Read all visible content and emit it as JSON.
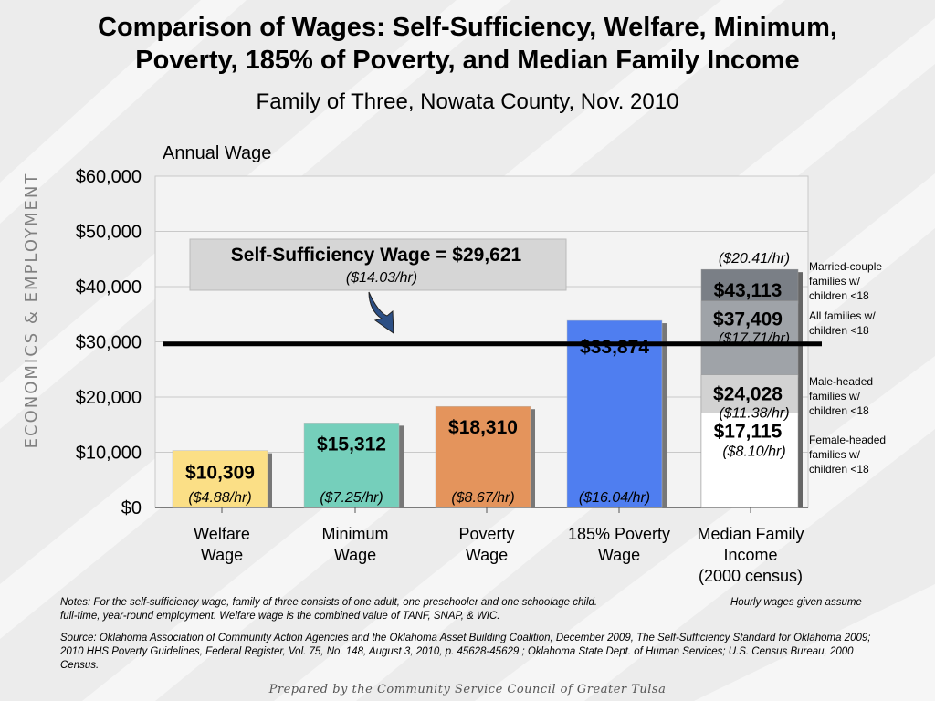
{
  "slide": {
    "title_line1": "Comparison of Wages: Self-Sufficiency, Welfare, Minimum,",
    "title_line2": "Poverty, 185% of Poverty, and Median Family Income",
    "subtitle": "Family of Three, Nowata County, Nov. 2010",
    "side_label": "ECONOMICS & EMPLOYMENT",
    "notes_line1": "Notes:  For the self-sufficiency wage, family of three consists of one adult, one preschooler and one schoolage child.",
    "notes_hourly": "Hourly wages given assume",
    "notes_line2": "full-time, year-round employment.  Welfare wage is the combined value of TANF, SNAP, & WIC.",
    "source": "Source:  Oklahoma Association of Community Action Agencies and the Oklahoma Asset Building Coalition, December 2009, The Self-Sufficiency Standard for Oklahoma 2009; 2010 HHS Poverty Guidelines, Federal Register, Vol. 75, No. 148, August 3, 2010, p. 45628-45629.; Oklahoma State Dept. of Human Services; U.S. Census Bureau, 2000 Census.",
    "footer": "Prepared by the Community Service Council of Greater Tulsa"
  },
  "chart_data": {
    "type": "bar",
    "title": "Comparison of Wages: Self-Sufficiency, Welfare, Minimum, Poverty, 185% of Poverty, and Median Family Income",
    "subtitle": "Family of Three, Nowata County, Nov. 2010",
    "ylabel": "Annual Wage",
    "ylim": [
      0,
      60000
    ],
    "y_ticks": [
      0,
      10000,
      20000,
      30000,
      40000,
      50000,
      60000
    ],
    "y_tick_labels": [
      "$0",
      "$10,000",
      "$20,000",
      "$30,000",
      "$40,000",
      "$50,000",
      "$60,000"
    ],
    "grid": true,
    "categories": [
      [
        "Welfare",
        "Wage"
      ],
      [
        "Minimum",
        "Wage"
      ],
      [
        "Poverty",
        "Wage"
      ],
      [
        "185% Poverty",
        "Wage"
      ],
      [
        "Median Family",
        "Income",
        "(2000 census)"
      ]
    ],
    "bars": [
      {
        "value": 10309,
        "label": "$10,309",
        "hourly": "($4.88/hr)",
        "color": "#fbdf86"
      },
      {
        "value": 15312,
        "label": "$15,312",
        "hourly": "($7.25/hr)",
        "color": "#75cfbb"
      },
      {
        "value": 18310,
        "label": "$18,310",
        "hourly": "($8.67/hr)",
        "color": "#e4945c"
      },
      {
        "value": 33874,
        "label": "$33,874",
        "hourly": "($16.04/hr)",
        "color": "#4f7ef0"
      }
    ],
    "median_stack": [
      {
        "value": 43113,
        "label": "$43,113",
        "hourly": "($20.41/hr)",
        "desc": "Married-couple families w/ children <18",
        "color": "#7a7f86"
      },
      {
        "value": 37409,
        "label": "$37,409",
        "hourly": "($17.71/hr)",
        "desc": "All families w/ children <18",
        "color": "#9fa3a8"
      },
      {
        "value": 24028,
        "label": "$24,028",
        "hourly": "($11.38/hr)",
        "desc": "Male-headed families w/ children <18",
        "color": "#d2d2d2"
      },
      {
        "value": 17115,
        "label": "$17,115",
        "hourly": "($8.10/hr)",
        "desc": "Female-headed families w/ children <18",
        "color": "#ffffff"
      }
    ],
    "reference_line": {
      "value": 29621,
      "label": "Self-Sufficiency Wage = $29,621",
      "hourly": "($14.03/hr)"
    }
  }
}
